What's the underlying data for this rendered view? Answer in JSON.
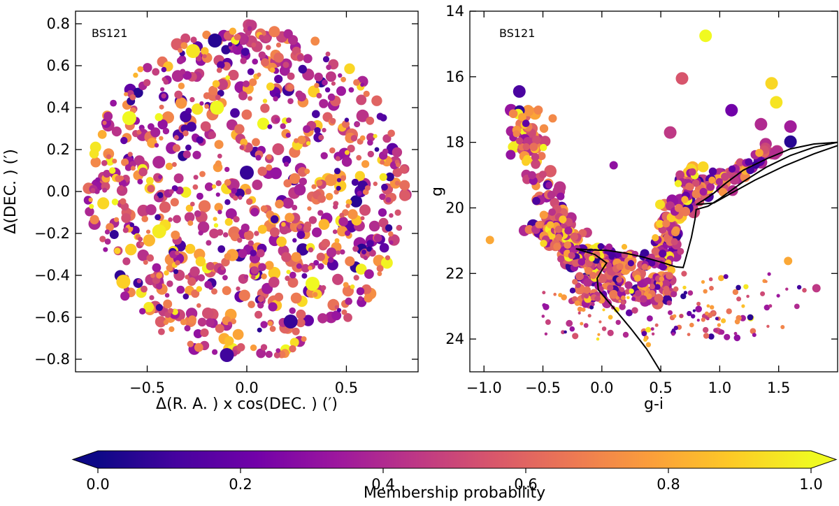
{
  "chart_data": [
    {
      "type": "scatter",
      "panel": "left",
      "label": "BS121",
      "title": "",
      "xlabel": "Δ(R. A. ) x cos(DEC. ) (′)",
      "ylabel": "Δ(DEC. ) (′)",
      "xlim": [
        -0.86,
        0.86
      ],
      "ylim": [
        -0.86,
        0.86
      ],
      "xticks": [
        -0.5,
        0.0,
        0.5
      ],
      "xtick_labels": [
        "−0.5",
        "0.0",
        "0.5"
      ],
      "yticks": [
        0.8,
        0.6,
        0.4,
        0.2,
        0.0,
        -0.2,
        -0.4,
        -0.6,
        -0.8
      ],
      "ytick_labels": [
        "0.8",
        "0.6",
        "0.4",
        "0.2",
        "0.0",
        "−0.2",
        "−0.4",
        "−0.6",
        "−0.8"
      ],
      "field_radius": 0.8,
      "points_shown": 900,
      "highlight_points": [
        {
          "x": -0.59,
          "y": 0.35,
          "p": 1.0
        },
        {
          "x": -0.15,
          "y": 0.4,
          "p": 1.0
        },
        {
          "x": -0.44,
          "y": -0.19,
          "p": 0.97
        },
        {
          "x": 0.33,
          "y": -0.44,
          "p": 1.0
        },
        {
          "x": -0.27,
          "y": 0.67,
          "p": 0.95
        },
        {
          "x": -0.62,
          "y": -0.43,
          "p": 0.9
        },
        {
          "x": -0.16,
          "y": 0.72,
          "p": 0.05
        },
        {
          "x": 0.0,
          "y": 0.09,
          "p": 0.08
        },
        {
          "x": -0.1,
          "y": -0.78,
          "p": 0.1
        },
        {
          "x": 0.22,
          "y": -0.62,
          "p": 0.08
        }
      ]
    },
    {
      "type": "scatter",
      "panel": "right",
      "label": "BS121",
      "title": "",
      "xlabel": "g-i",
      "ylabel": "g",
      "xlim": [
        -1.12,
        2.0
      ],
      "ylim": [
        25.0,
        14.0
      ],
      "xticks": [
        -1.0,
        -0.5,
        0.0,
        0.5,
        1.0,
        1.5
      ],
      "xtick_labels": [
        "−1.0",
        "−0.5",
        "0.0",
        "0.5",
        "1.0",
        "1.5"
      ],
      "yticks": [
        14,
        16,
        18,
        20,
        22,
        24
      ],
      "ytick_labels": [
        "14",
        "16",
        "18",
        "20",
        "22",
        "24"
      ],
      "points_shown": 760,
      "bright_points": [
        {
          "x": 0.88,
          "y": 14.75,
          "p": 1.0
        },
        {
          "x": 0.68,
          "y": 16.05,
          "p": 0.55
        },
        {
          "x": 1.44,
          "y": 16.2,
          "p": 0.92
        },
        {
          "x": 1.48,
          "y": 16.78,
          "p": 0.95
        },
        {
          "x": 1.1,
          "y": 17.02,
          "p": 0.22
        },
        {
          "x": -0.7,
          "y": 16.45,
          "p": 0.12
        },
        {
          "x": 1.35,
          "y": 17.45,
          "p": 0.4
        },
        {
          "x": 1.6,
          "y": 17.52,
          "p": 0.35
        },
        {
          "x": 0.58,
          "y": 17.7,
          "p": 0.45
        },
        {
          "x": 1.6,
          "y": 17.98,
          "p": 0.05
        },
        {
          "x": 0.1,
          "y": 18.7,
          "p": 0.3
        },
        {
          "x": 1.58,
          "y": 21.62,
          "p": 0.8
        },
        {
          "x": 1.82,
          "y": 22.45,
          "p": 0.45
        },
        {
          "x": -0.95,
          "y": 20.98,
          "p": 0.8
        }
      ],
      "isochrone": [
        [
          0.5,
          25.0
        ],
        [
          0.38,
          24.3
        ],
        [
          0.25,
          23.7
        ],
        [
          0.1,
          23.05
        ],
        [
          -0.03,
          22.5
        ],
        [
          -0.04,
          22.15
        ],
        [
          0.0,
          21.9
        ],
        [
          0.04,
          21.68
        ],
        [
          -0.06,
          21.42
        ],
        [
          -0.22,
          21.25
        ],
        [
          -0.1,
          21.28
        ],
        [
          0.05,
          21.3
        ],
        [
          0.2,
          21.38
        ],
        [
          0.35,
          21.5
        ],
        [
          0.5,
          21.65
        ],
        [
          0.63,
          21.8
        ],
        [
          0.69,
          21.82
        ],
        [
          0.7,
          21.7
        ],
        [
          0.73,
          21.3
        ],
        [
          0.76,
          20.9
        ],
        [
          0.79,
          20.35
        ],
        [
          0.8,
          20.05
        ],
        [
          0.9,
          19.95
        ],
        [
          1.0,
          19.72
        ],
        [
          1.2,
          19.2
        ],
        [
          1.4,
          18.75
        ],
        [
          1.6,
          18.4
        ],
        [
          1.8,
          18.15
        ],
        [
          2.0,
          18.0
        ],
        [
          1.8,
          18.05
        ],
        [
          1.6,
          18.2
        ],
        [
          1.4,
          18.5
        ],
        [
          1.2,
          18.85
        ],
        [
          1.05,
          19.25
        ],
        [
          0.95,
          19.55
        ],
        [
          0.87,
          19.75
        ],
        [
          0.8,
          19.9
        ],
        [
          0.95,
          19.85
        ],
        [
          1.1,
          19.55
        ],
        [
          1.3,
          19.15
        ],
        [
          1.55,
          18.72
        ],
        [
          1.8,
          18.35
        ],
        [
          2.0,
          18.1
        ]
      ]
    }
  ],
  "colorbar": {
    "label": "Membership probability",
    "min": 0.0,
    "max": 1.0,
    "extend": "both",
    "ticks": [
      0.0,
      0.2,
      0.4,
      0.6,
      0.8,
      1.0
    ],
    "tick_labels": [
      "0.0",
      "0.2",
      "0.4",
      "0.6",
      "0.8",
      "1.0"
    ],
    "colormap": "plasma",
    "stops": [
      "#0d0887",
      "#46039f",
      "#7201a8",
      "#9c179e",
      "#bd3786",
      "#d8576b",
      "#ed7953",
      "#fb9f3a",
      "#fdca26",
      "#f0f921"
    ]
  }
}
